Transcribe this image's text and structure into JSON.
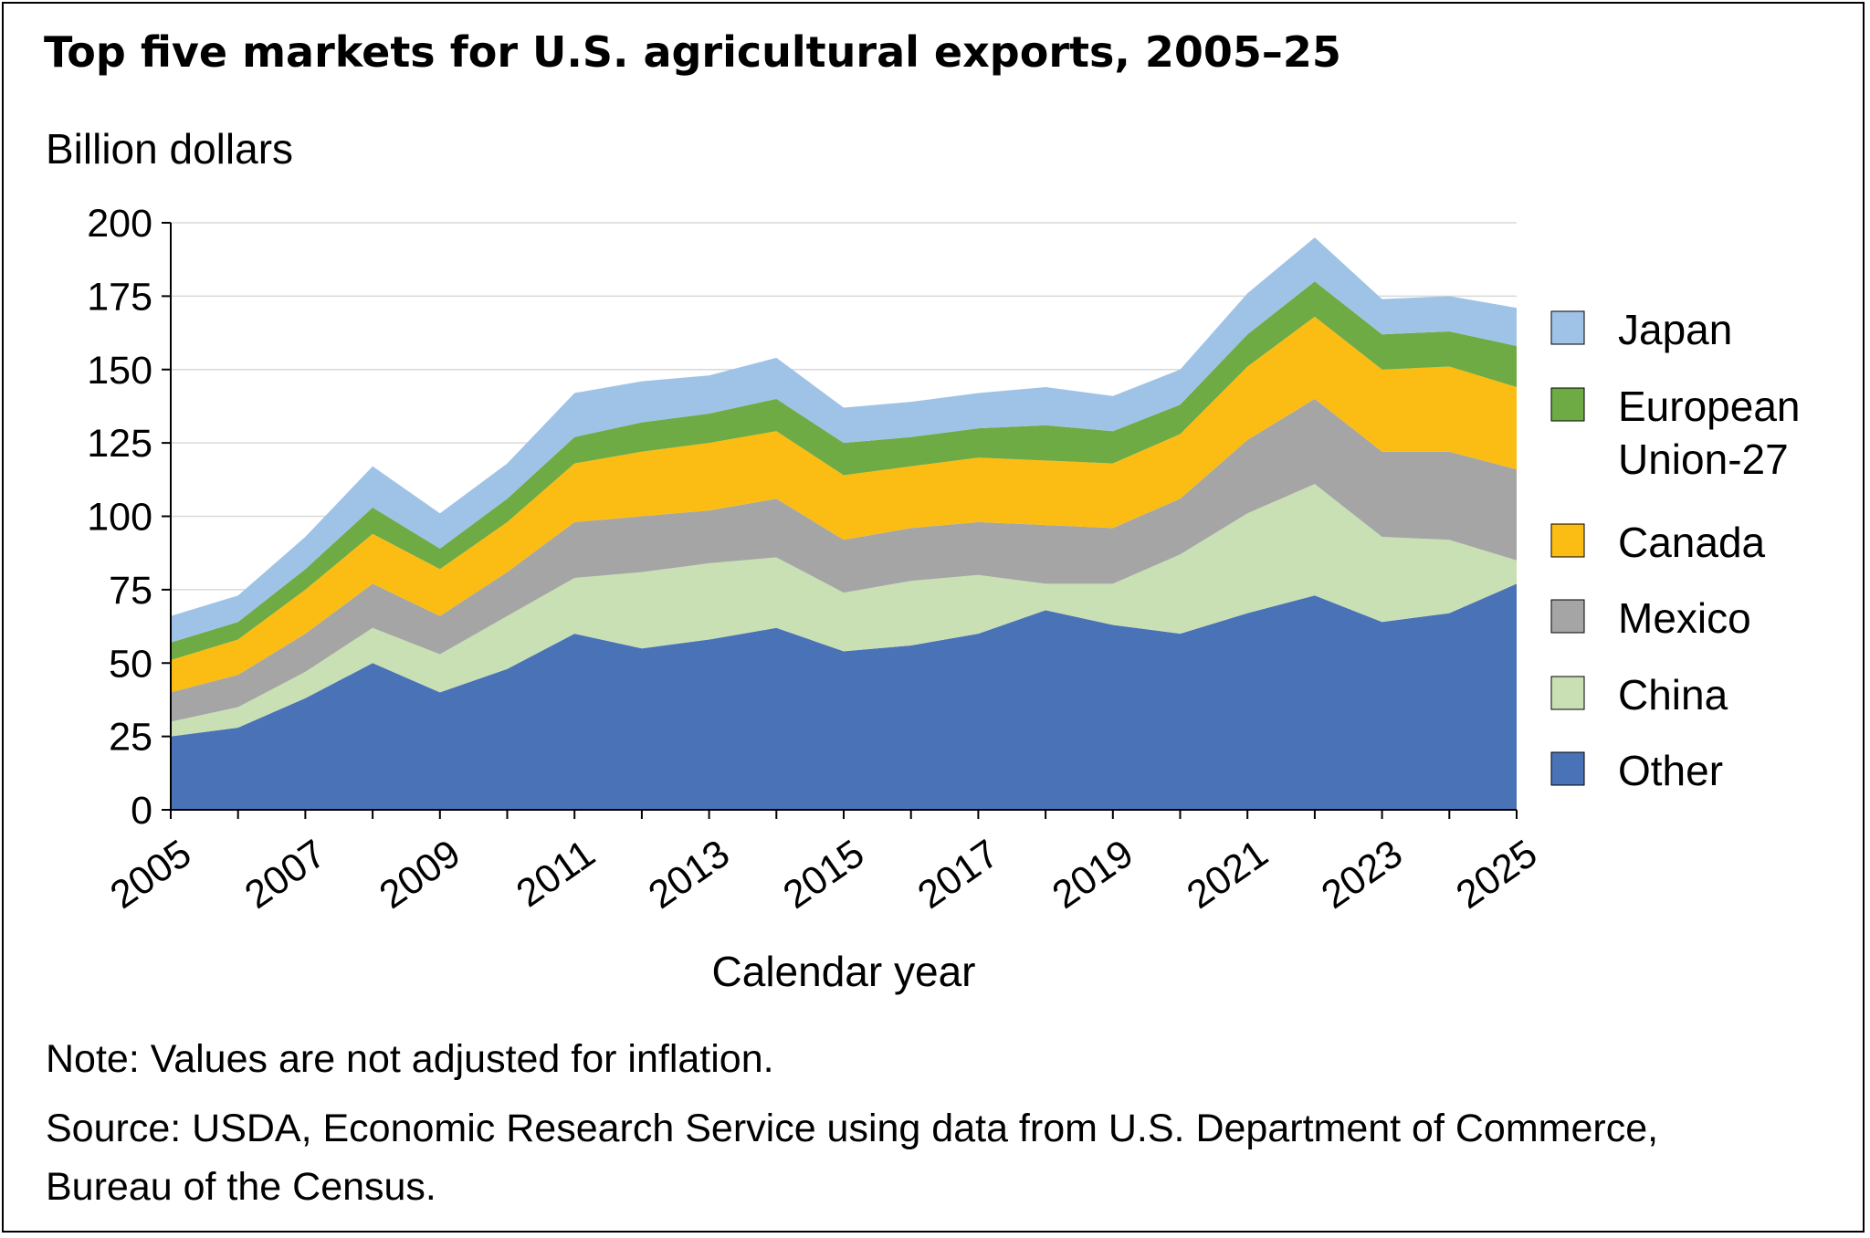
{
  "title": "Top five markets for U.S. agricultural exports, 2005–25",
  "note": "Note: Values are not adjusted for inflation.",
  "source": "Source: USDA, Economic Research Service using data from U.S. Department of Commerce, Bureau of the Census.",
  "chart_data": {
    "type": "area",
    "stacked": true,
    "title": "Top five markets for U.S. agricultural exports, 2005–25",
    "ylabel": "Billion dollars",
    "xlabel": "Calendar year",
    "ylim": [
      0,
      200
    ],
    "yticks": [
      0,
      25,
      50,
      75,
      100,
      125,
      150,
      175,
      200
    ],
    "x": [
      2005,
      2006,
      2007,
      2008,
      2009,
      2010,
      2011,
      2012,
      2013,
      2014,
      2015,
      2016,
      2017,
      2018,
      2019,
      2020,
      2021,
      2022,
      2023,
      2024,
      2025
    ],
    "xtick_labels": [
      "2005",
      "2007",
      "2009",
      "2011",
      "2013",
      "2015",
      "2017",
      "2019",
      "2021",
      "2023",
      "2025"
    ],
    "grid": true,
    "legend_position": "right",
    "series": [
      {
        "name": "Other",
        "color": "#4a72b7",
        "values": [
          25,
          28,
          38,
          50,
          40,
          48,
          60,
          55,
          58,
          62,
          54,
          56,
          60,
          68,
          63,
          60,
          67,
          73,
          64,
          67,
          77
        ]
      },
      {
        "name": "China",
        "color": "#c8e0b4",
        "values": [
          5,
          7,
          9,
          12,
          13,
          18,
          19,
          26,
          26,
          24,
          20,
          22,
          20,
          9,
          14,
          27,
          34,
          38,
          29,
          25,
          8
        ]
      },
      {
        "name": "Mexico",
        "color": "#a5a5a5",
        "values": [
          10,
          11,
          13,
          15,
          13,
          15,
          19,
          19,
          18,
          20,
          18,
          18,
          18,
          20,
          19,
          19,
          25,
          29,
          29,
          30,
          31
        ]
      },
      {
        "name": "Canada",
        "color": "#fbbd13",
        "values": [
          11,
          12,
          15,
          17,
          16,
          17,
          20,
          22,
          23,
          23,
          22,
          21,
          22,
          22,
          22,
          22,
          25,
          28,
          28,
          29,
          28
        ]
      },
      {
        "name": "European Union-27",
        "color": "#6eab45",
        "values": [
          6,
          6,
          7,
          9,
          7,
          8,
          9,
          10,
          10,
          11,
          11,
          10,
          10,
          12,
          11,
          10,
          11,
          12,
          12,
          12,
          14
        ]
      },
      {
        "name": "Japan",
        "color": "#9fc3e6",
        "values": [
          9,
          9,
          11,
          14,
          12,
          12,
          15,
          14,
          13,
          14,
          12,
          12,
          12,
          13,
          12,
          12,
          14,
          15,
          12,
          12,
          13
        ]
      }
    ],
    "legend_order": [
      "Japan",
      "European Union-27",
      "Canada",
      "Mexico",
      "China",
      "Other"
    ]
  }
}
